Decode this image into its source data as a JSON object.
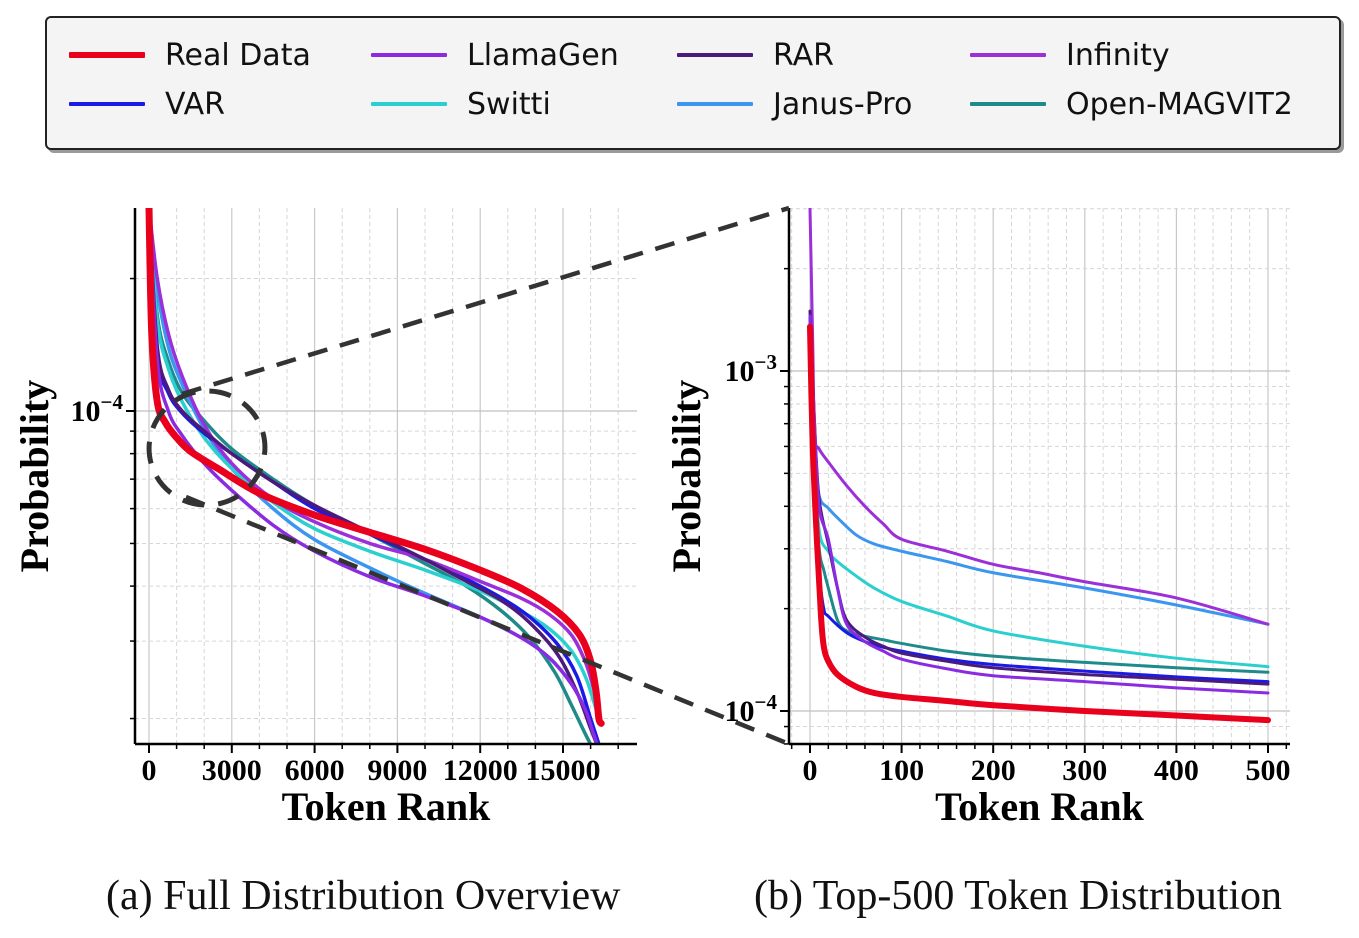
{
  "legend": {
    "items": [
      {
        "name": "Real Data",
        "color": "#e8001c",
        "thick": true
      },
      {
        "name": "LlamaGen",
        "color": "#8a2be2"
      },
      {
        "name": "RAR",
        "color": "#4b1a7a"
      },
      {
        "name": "Infinity",
        "color": "#9b30d9"
      },
      {
        "name": "VAR",
        "color": "#1a1ae6"
      },
      {
        "name": "Switti",
        "color": "#2ccfcf"
      },
      {
        "name": "Janus-Pro",
        "color": "#3c96f0"
      },
      {
        "name": "Open-MAGVIT2",
        "color": "#1f8a8a"
      }
    ]
  },
  "captions": {
    "a": "(a) Full Distribution Overview",
    "b": "(b) Top-500 Token Distribution"
  },
  "chart_data": [
    {
      "type": "line",
      "title": "(a) Full Distribution Overview",
      "xlabel": "Token Rank",
      "ylabel": "Probability",
      "xscale": "linear",
      "yscale": "log",
      "xlim": [
        -500,
        17000
      ],
      "ylim": [
        1.75e-05,
        0.00029
      ],
      "xticks": [
        0,
        3000,
        6000,
        9000,
        12000,
        15000
      ],
      "xtick_labels": [
        "0",
        "3000",
        "6000",
        "9000",
        "12000",
        "15000"
      ],
      "yticks": [
        0.0001
      ],
      "ytick_labels": [
        "10^-4"
      ],
      "grid": true,
      "annotation": "dashed ellipse around ranks 0-4000 zoomed into panel (b)",
      "series": [
        {
          "name": "Real Data",
          "x": [
            0,
            100,
            300,
            600,
            1000,
            1500,
            2500,
            4000,
            6000,
            8000,
            10000,
            12000,
            13500,
            14800,
            15600,
            16000,
            16200,
            16300,
            16384
          ],
          "y": [
            0.00029,
            0.00015,
            0.000105,
            9.4e-05,
            8.7e-05,
            8.1e-05,
            7.4e-05,
            6.5e-05,
            5.8e-05,
            5.3e-05,
            4.85e-05,
            4.35e-05,
            3.95e-05,
            3.5e-05,
            3.1e-05,
            2.7e-05,
            2.3e-05,
            2e-05,
            1.95e-05
          ]
        },
        {
          "name": "LlamaGen",
          "x": [
            0,
            300,
            700,
            1200,
            2000,
            3000,
            4500,
            6000,
            8000,
            10000,
            12000,
            13500,
            14500,
            15300,
            15800,
            16100,
            16300
          ],
          "y": [
            0.00029,
            0.00013,
            0.0001,
            8.8e-05,
            7.6e-05,
            6.6e-05,
            5.5e-05,
            4.8e-05,
            4.2e-05,
            3.8e-05,
            3.4e-05,
            3.05e-05,
            2.75e-05,
            2.4e-05,
            2.1e-05,
            1.85e-05,
            1.7e-05
          ]
        },
        {
          "name": "RAR",
          "x": [
            0,
            300,
            700,
            1200,
            2000,
            3000,
            4500,
            6000,
            8000,
            10000,
            11500,
            12800,
            13800,
            14800,
            15500,
            16000,
            16300
          ],
          "y": [
            0.00029,
            0.00014,
            0.000112,
            0.0001,
            9e-05,
            8e-05,
            6.9e-05,
            6.1e-05,
            5.3e-05,
            4.6e-05,
            4.1e-05,
            3.7e-05,
            3.3e-05,
            2.8e-05,
            2.3e-05,
            1.9e-05,
            1.7e-05
          ]
        },
        {
          "name": "Infinity",
          "x": [
            0,
            300,
            700,
            1200,
            2000,
            3000,
            4500,
            6000,
            8000,
            10000,
            12000,
            13500,
            14500,
            15300,
            15800,
            16100,
            16300
          ],
          "y": [
            0.00029,
            0.0002,
            0.00015,
            0.00012,
            9.3e-05,
            7.6e-05,
            6.3e-05,
            5.6e-05,
            5e-05,
            4.6e-05,
            4.1e-05,
            3.75e-05,
            3.45e-05,
            3.1e-05,
            2.7e-05,
            2.35e-05,
            2.1e-05
          ]
        },
        {
          "name": "VAR",
          "x": [
            0,
            300,
            700,
            1200,
            2000,
            3000,
            4500,
            6000,
            8000,
            10000,
            11500,
            12800,
            13800,
            14800,
            15500,
            16000,
            16300
          ],
          "y": [
            0.00029,
            0.000135,
            0.00011,
            9.9e-05,
            8.9e-05,
            8e-05,
            6.9e-05,
            6e-05,
            5.25e-05,
            4.6e-05,
            4.15e-05,
            3.75e-05,
            3.4e-05,
            2.95e-05,
            2.5e-05,
            2e-05,
            1.75e-05
          ]
        },
        {
          "name": "Switti",
          "x": [
            0,
            300,
            700,
            1200,
            2000,
            3000,
            4500,
            6000,
            8000,
            10000,
            12000,
            13500,
            14500,
            15300,
            15800,
            16100,
            16300
          ],
          "y": [
            0.00029,
            0.00016,
            0.000125,
            0.000105,
            8.7e-05,
            7.4e-05,
            6.2e-05,
            5.4e-05,
            4.8e-05,
            4.35e-05,
            3.9e-05,
            3.5e-05,
            3.2e-05,
            2.85e-05,
            2.5e-05,
            2.2e-05,
            2e-05
          ]
        },
        {
          "name": "Janus-Pro",
          "x": [
            0,
            300,
            700,
            1200,
            2000,
            3000,
            4500,
            6000,
            8000,
            10000,
            12000,
            13500,
            14500,
            15300,
            15800,
            16100,
            16300
          ],
          "y": [
            0.00029,
            0.00019,
            0.00014,
            0.000115,
            9.1e-05,
            7.4e-05,
            6e-05,
            5.1e-05,
            4.4e-05,
            3.85e-05,
            3.4e-05,
            3.05e-05,
            2.75e-05,
            2.4e-05,
            2.1e-05,
            1.85e-05,
            1.7e-05
          ]
        },
        {
          "name": "Open-MAGVIT2",
          "x": [
            0,
            300,
            700,
            1200,
            2000,
            3000,
            4500,
            6000,
            8000,
            10000,
            11500,
            12800,
            13800,
            14700,
            15300,
            15800,
            16100
          ],
          "y": [
            0.00029,
            0.000165,
            0.00013,
            0.00011,
            9.5e-05,
            8.2e-05,
            7e-05,
            6.1e-05,
            5.25e-05,
            4.5e-05,
            4e-05,
            3.5e-05,
            3.05e-05,
            2.55e-05,
            2.15e-05,
            1.85e-05,
            1.7e-05
          ]
        }
      ]
    },
    {
      "type": "line",
      "title": "(b) Top-500 Token Distribution",
      "xlabel": "Token Rank",
      "ylabel": "Probability",
      "xscale": "linear",
      "yscale": "log",
      "xlim": [
        -25,
        525
      ],
      "ylim": [
        8e-05,
        0.003
      ],
      "xticks": [
        0,
        100,
        200,
        300,
        400,
        500
      ],
      "xtick_labels": [
        "0",
        "100",
        "200",
        "300",
        "400",
        "500"
      ],
      "yticks": [
        0.001,
        0.0001
      ],
      "ytick_labels": [
        "10^-3",
        "10^-4"
      ],
      "grid": true,
      "series": [
        {
          "name": "Real Data",
          "x": [
            0,
            3,
            8,
            12,
            15,
            20,
            30,
            50,
            70,
            100,
            150,
            200,
            300,
            400,
            500
          ],
          "y": [
            0.00135,
            0.0006,
            0.0003,
            0.00019,
            0.000155,
            0.00014,
            0.000128,
            0.000118,
            0.000113,
            0.00011,
            0.000107,
            0.000104,
            0.0001,
            9.7e-05,
            9.4e-05
          ]
        },
        {
          "name": "LlamaGen",
          "x": [
            0,
            5,
            10,
            20,
            30,
            40,
            60,
            80,
            100,
            150,
            200,
            300,
            400,
            500
          ],
          "y": [
            0.00145,
            0.0007,
            0.0004,
            0.00032,
            0.00023,
            0.00018,
            0.00016,
            0.00015,
            0.000142,
            0.000133,
            0.000127,
            0.000122,
            0.000117,
            0.000113
          ]
        },
        {
          "name": "RAR",
          "x": [
            0,
            5,
            10,
            20,
            30,
            40,
            60,
            80,
            100,
            150,
            200,
            300,
            400,
            500
          ],
          "y": [
            0.0015,
            0.0007,
            0.00042,
            0.00031,
            0.00023,
            0.000185,
            0.000165,
            0.000155,
            0.000148,
            0.00014,
            0.000134,
            0.000128,
            0.000124,
            0.00012
          ]
        },
        {
          "name": "Infinity",
          "x": [
            0,
            3,
            5,
            10,
            20,
            40,
            60,
            80,
            100,
            150,
            200,
            250,
            300,
            400,
            500
          ],
          "y": [
            0.003,
            0.0012,
            0.00065,
            0.00059,
            0.00054,
            0.00046,
            0.0004,
            0.000355,
            0.00032,
            0.000295,
            0.00027,
            0.000255,
            0.00024,
            0.000215,
            0.00018
          ]
        },
        {
          "name": "VAR",
          "x": [
            0,
            5,
            10,
            15,
            20,
            40,
            60,
            80,
            100,
            150,
            200,
            300,
            400,
            500
          ],
          "y": [
            0.00145,
            0.0005,
            0.00026,
            0.0002,
            0.00019,
            0.00017,
            0.00016,
            0.000154,
            0.00015,
            0.000142,
            0.000137,
            0.000131,
            0.000126,
            0.000122
          ]
        },
        {
          "name": "Switti",
          "x": [
            0,
            5,
            10,
            20,
            30,
            50,
            70,
            100,
            150,
            200,
            300,
            400,
            500
          ],
          "y": [
            0.00145,
            0.0006,
            0.00034,
            0.000295,
            0.000275,
            0.00025,
            0.00023,
            0.00021,
            0.00019,
            0.000172,
            0.000155,
            0.000143,
            0.000135
          ]
        },
        {
          "name": "Janus-Pro",
          "x": [
            0,
            5,
            10,
            20,
            30,
            50,
            70,
            100,
            150,
            200,
            300,
            400,
            500
          ],
          "y": [
            0.00145,
            0.0006,
            0.00043,
            0.000395,
            0.00037,
            0.00033,
            0.00031,
            0.000295,
            0.000275,
            0.000255,
            0.00023,
            0.000205,
            0.00018
          ]
        },
        {
          "name": "Open-MAGVIT2",
          "x": [
            0,
            5,
            10,
            15,
            20,
            30,
            40,
            60,
            80,
            100,
            150,
            200,
            300,
            400,
            500
          ],
          "y": [
            0.00145,
            0.0005,
            0.0003,
            0.00026,
            0.00023,
            0.000185,
            0.000172,
            0.000166,
            0.000162,
            0.000158,
            0.00015,
            0.000145,
            0.000139,
            0.000134,
            0.00013
          ]
        }
      ]
    }
  ]
}
